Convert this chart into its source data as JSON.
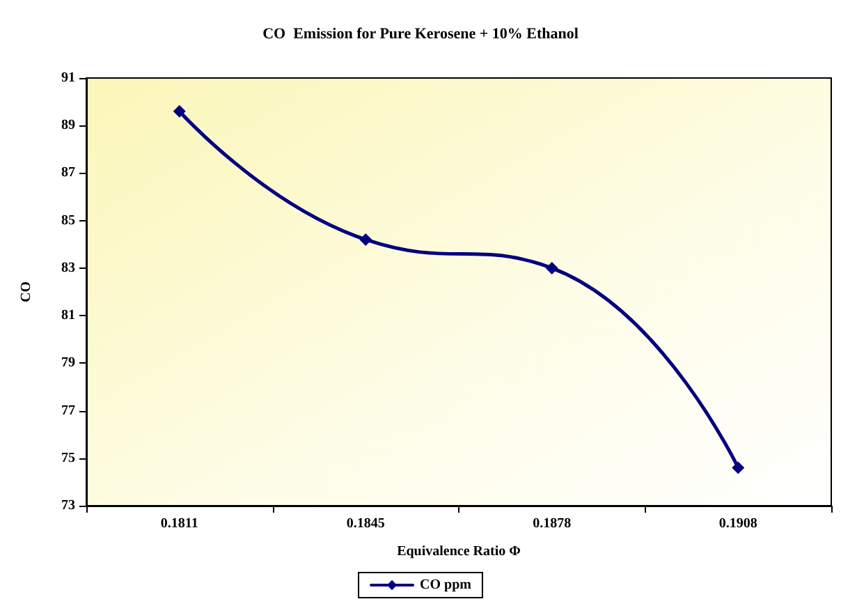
{
  "chart_data": {
    "type": "line",
    "title": "CO  Emission for Pure Kerosene + 10% Ethanol",
    "xlabel": "Equivalence Ratio Φ",
    "ylabel": "CO",
    "categories": [
      "0.1811",
      "0.1845",
      "0.1878",
      "0.1908"
    ],
    "series": [
      {
        "name": "CO ppm",
        "color": "#000080",
        "values": [
          89.6,
          84.2,
          83.0,
          74.6
        ]
      }
    ],
    "ylim": [
      73,
      91
    ],
    "yticks": [
      73,
      75,
      77,
      79,
      81,
      83,
      85,
      87,
      89,
      91
    ],
    "grid": false,
    "legend": "bottom",
    "marker": "diamond",
    "line_style": "solid"
  }
}
